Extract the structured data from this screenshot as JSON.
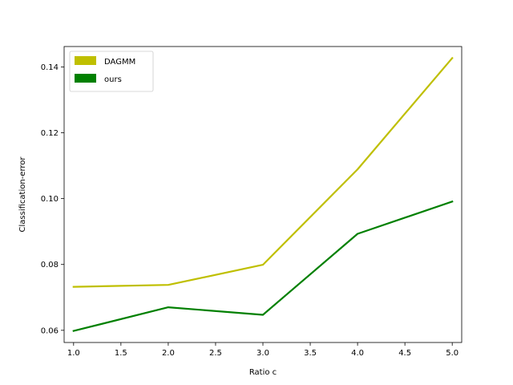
{
  "chart_data": {
    "type": "line",
    "xlabel": "Ratio c",
    "ylabel": "Classification-error",
    "xlim": [
      0.9,
      5.1
    ],
    "ylim": [
      0.0563,
      0.1462
    ],
    "x_ticks": [
      1.0,
      1.5,
      2.0,
      2.5,
      3.0,
      3.5,
      4.0,
      4.5,
      5.0
    ],
    "x_tick_labels": [
      "1.0",
      "1.5",
      "2.0",
      "2.5",
      "3.0",
      "3.5",
      "4.0",
      "4.5",
      "5.0"
    ],
    "y_ticks": [
      0.06,
      0.08,
      0.1,
      0.12,
      0.14
    ],
    "y_tick_labels": [
      "0.06",
      "0.08",
      "0.10",
      "0.12",
      "0.14"
    ],
    "grid": false,
    "legend_position": "top-left",
    "x": [
      1.0,
      2.0,
      3.0,
      4.0,
      5.0
    ],
    "series": [
      {
        "name": "DAGMM",
        "color": "#bfbf00",
        "values": [
          0.0732,
          0.0738,
          0.0799,
          0.1089,
          0.1427
        ]
      },
      {
        "name": "ours",
        "color": "#008000",
        "values": [
          0.0598,
          0.067,
          0.0647,
          0.0893,
          0.0991
        ]
      }
    ]
  }
}
